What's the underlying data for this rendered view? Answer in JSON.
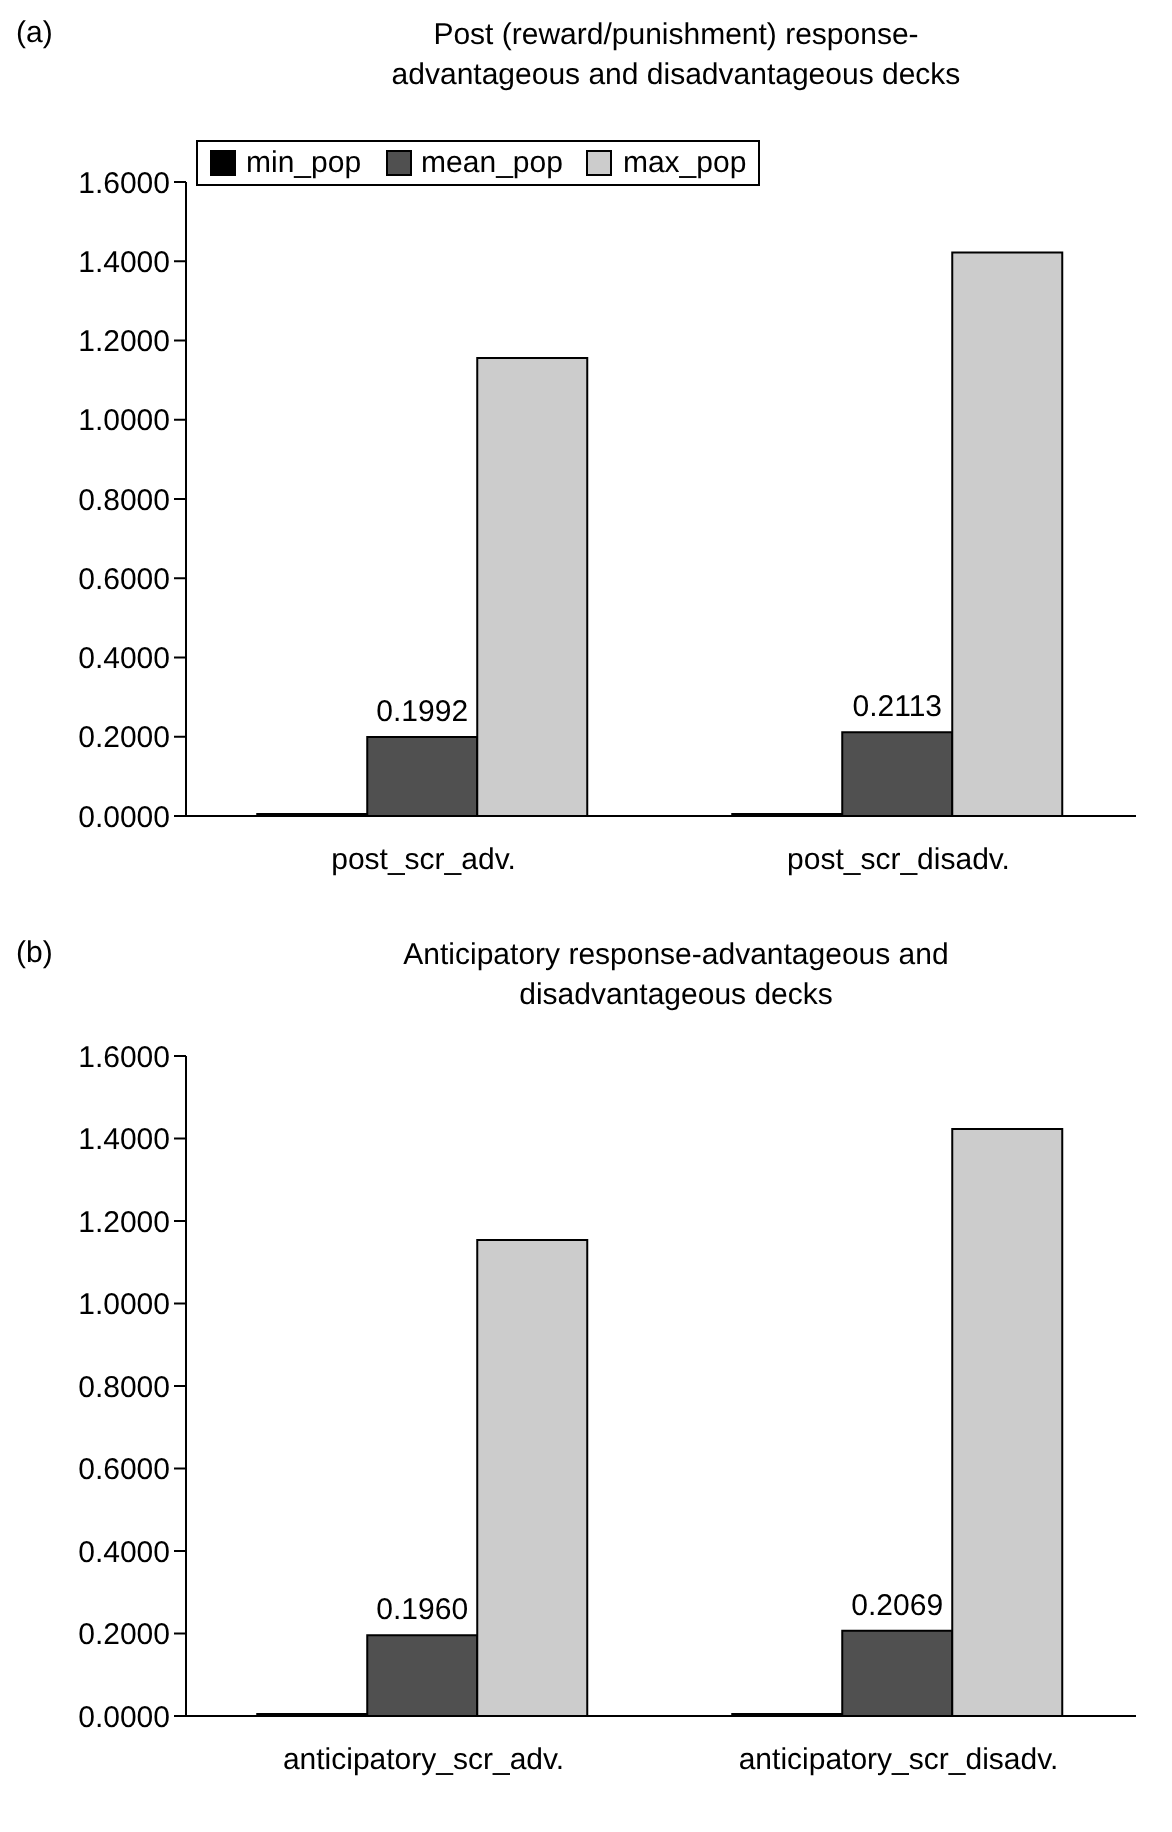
{
  "chart_data": [
    {
      "type": "bar",
      "title": "Post (reward/punishment) response-\nadvantageous and disadvantageous decks",
      "annotations": [
        "(a)"
      ],
      "categories": [
        "post_scr_adv.",
        "post_scr_disadv."
      ],
      "series": [
        {
          "name": "min_pop",
          "color": "#000000",
          "values": [
            0.005,
            0.005
          ]
        },
        {
          "name": "mean_pop",
          "color": "#505050",
          "values": [
            0.1992,
            0.2113
          ],
          "value_labels": [
            "0.1992",
            "0.2113"
          ]
        },
        {
          "name": "max_pop",
          "color": "#cccccc",
          "values": [
            1.156,
            1.422
          ]
        }
      ],
      "ylim": [
        0,
        1.6
      ],
      "yticks": [
        {
          "value": 0,
          "label": "0.0000"
        },
        {
          "value": 0.2,
          "label": "0.2000"
        },
        {
          "value": 0.4,
          "label": "0.4000"
        },
        {
          "value": 0.6,
          "label": "0.6000"
        },
        {
          "value": 0.8,
          "label": "0.8000"
        },
        {
          "value": 1,
          "label": "1.0000"
        },
        {
          "value": 1.2,
          "label": "1.2000"
        },
        {
          "value": 1.4,
          "label": "1.4000"
        },
        {
          "value": 1.6,
          "label": "1.6000"
        }
      ],
      "legend": "top left",
      "grid": false
    },
    {
      "type": "bar",
      "title": "Anticipatory response-advantageous and\ndisadvantageous decks",
      "annotations": [
        "(b)"
      ],
      "categories": [
        "anticipatory_scr_adv.",
        "anticipatory_scr_disadv."
      ],
      "series": [
        {
          "color": "#000000",
          "values": [
            0.005,
            0.005
          ]
        },
        {
          "color": "#505050",
          "values": [
            0.196,
            0.2069
          ],
          "value_labels": [
            "0.1960",
            "0.2069"
          ]
        },
        {
          "color": "#cccccc",
          "values": [
            1.154,
            1.423
          ]
        }
      ],
      "ylim": [
        0,
        1.6
      ],
      "yticks": [
        {
          "value": 0,
          "label": "0.0000"
        },
        {
          "value": 0.2,
          "label": "0.2000"
        },
        {
          "value": 0.4,
          "label": "0.4000"
        },
        {
          "value": 0.6,
          "label": "0.6000"
        },
        {
          "value": 0.8,
          "label": "0.8000"
        },
        {
          "value": 1,
          "label": "1.0000"
        },
        {
          "value": 1.2,
          "label": "1.2000"
        },
        {
          "value": 1.4,
          "label": "1.4000"
        },
        {
          "value": 1.6,
          "label": "1.6000"
        }
      ],
      "legend": false,
      "grid": false
    }
  ]
}
